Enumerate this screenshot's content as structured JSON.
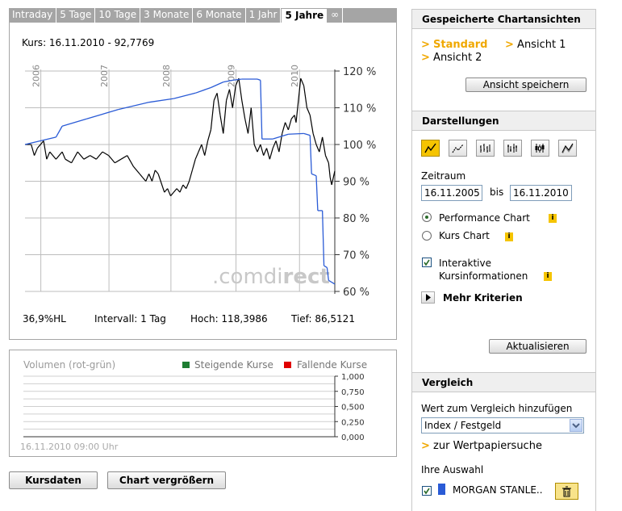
{
  "tabs": [
    "Intraday",
    "5 Tage",
    "10 Tage",
    "3 Monate",
    "6 Monate",
    "1 Jahr",
    "5 Jahre",
    "∞"
  ],
  "active_tab": "5 Jahre",
  "chart": {
    "price_title": "Kurs: 16.11.2010 - 92,7769",
    "year_labels": [
      "2006",
      "2007",
      "2008",
      "2009",
      "2010"
    ],
    "y_labels": [
      "120 %",
      "110 %",
      "100 %",
      "90 %",
      "80 %",
      "70 %",
      "60 %"
    ],
    "watermark_a": ".comdi",
    "watermark_b": "rect",
    "stat_hl": "36,9%HL",
    "stat_interval": "Intervall: 1 Tag",
    "stat_high": "Hoch: 118,3986",
    "stat_low": "Tief: 86,5121",
    "colors": {
      "stock": "#000000",
      "compare": "#2a5bd6",
      "grid": "#bdbdbd"
    }
  },
  "chart_data": {
    "type": "line",
    "x_range": [
      "16.11.2005",
      "16.11.2010"
    ],
    "ylim": [
      60,
      120
    ],
    "series": [
      {
        "name": "",
        "points": [
          [
            0,
            100
          ],
          [
            0.02,
            100
          ],
          [
            0.03,
            97
          ],
          [
            0.04,
            99
          ],
          [
            0.05,
            100
          ],
          [
            0.06,
            101
          ],
          [
            0.07,
            96
          ],
          [
            0.08,
            98
          ],
          [
            0.1,
            96
          ],
          [
            0.12,
            98
          ],
          [
            0.13,
            96
          ],
          [
            0.15,
            95
          ],
          [
            0.17,
            98
          ],
          [
            0.19,
            96
          ],
          [
            0.21,
            97
          ],
          [
            0.23,
            96
          ],
          [
            0.25,
            98
          ],
          [
            0.27,
            97
          ],
          [
            0.29,
            95
          ],
          [
            0.31,
            96
          ],
          [
            0.33,
            97
          ],
          [
            0.35,
            94
          ],
          [
            0.37,
            92
          ],
          [
            0.38,
            91
          ],
          [
            0.39,
            90
          ],
          [
            0.4,
            92
          ],
          [
            0.41,
            90
          ],
          [
            0.42,
            93
          ],
          [
            0.43,
            92
          ],
          [
            0.45,
            87
          ],
          [
            0.46,
            88
          ],
          [
            0.47,
            86
          ],
          [
            0.48,
            87
          ],
          [
            0.49,
            88
          ],
          [
            0.5,
            87
          ],
          [
            0.51,
            89
          ],
          [
            0.52,
            88
          ],
          [
            0.53,
            90
          ],
          [
            0.54,
            93
          ],
          [
            0.55,
            96
          ],
          [
            0.56,
            98
          ],
          [
            0.57,
            100
          ],
          [
            0.58,
            97
          ],
          [
            0.59,
            101
          ],
          [
            0.6,
            104
          ],
          [
            0.61,
            112
          ],
          [
            0.62,
            114
          ],
          [
            0.63,
            108
          ],
          [
            0.64,
            103
          ],
          [
            0.65,
            112
          ],
          [
            0.66,
            115
          ],
          [
            0.67,
            110
          ],
          [
            0.68,
            116
          ],
          [
            0.69,
            118
          ],
          [
            0.7,
            112
          ],
          [
            0.71,
            107
          ],
          [
            0.72,
            103
          ],
          [
            0.73,
            110
          ],
          [
            0.74,
            100
          ],
          [
            0.75,
            98
          ],
          [
            0.76,
            100
          ],
          [
            0.77,
            97
          ],
          [
            0.78,
            99
          ],
          [
            0.79,
            96
          ],
          [
            0.8,
            99
          ],
          [
            0.81,
            101
          ],
          [
            0.82,
            98
          ],
          [
            0.83,
            103
          ],
          [
            0.84,
            106
          ],
          [
            0.85,
            104
          ],
          [
            0.86,
            107
          ],
          [
            0.87,
            108
          ],
          [
            0.875,
            106
          ],
          [
            0.88,
            110
          ],
          [
            0.89,
            118
          ],
          [
            0.9,
            116
          ],
          [
            0.91,
            110
          ],
          [
            0.92,
            108
          ],
          [
            0.93,
            103
          ],
          [
            0.94,
            100
          ],
          [
            0.95,
            98
          ],
          [
            0.96,
            102
          ],
          [
            0.97,
            97
          ],
          [
            0.98,
            95
          ],
          [
            0.985,
            91
          ],
          [
            0.99,
            89
          ],
          [
            1.0,
            92.8
          ]
        ]
      },
      {
        "name": "MORGAN STANLE..",
        "points": [
          [
            0,
            100
          ],
          [
            0.1,
            102
          ],
          [
            0.12,
            105
          ],
          [
            0.2,
            107
          ],
          [
            0.3,
            109.5
          ],
          [
            0.4,
            111.5
          ],
          [
            0.48,
            112.5
          ],
          [
            0.55,
            114
          ],
          [
            0.6,
            115.5
          ],
          [
            0.64,
            117
          ],
          [
            0.67,
            117.5
          ],
          [
            0.7,
            117.8
          ],
          [
            0.75,
            117.8
          ],
          [
            0.76,
            117.5
          ],
          [
            0.765,
            101.5
          ],
          [
            0.8,
            101.5
          ],
          [
            0.85,
            102.8
          ],
          [
            0.9,
            103
          ],
          [
            0.92,
            102.5
          ],
          [
            0.925,
            92
          ],
          [
            0.94,
            91.5
          ],
          [
            0.945,
            82
          ],
          [
            0.96,
            82
          ],
          [
            0.965,
            67
          ],
          [
            0.975,
            66.5
          ],
          [
            0.98,
            63
          ],
          [
            1.0,
            62
          ]
        ]
      }
    ]
  },
  "volume": {
    "title": "Volumen (rot-grün)",
    "legend_up": "Steigende Kurse",
    "legend_down": "Fallende Kurse",
    "legend_up_color": "#1e7d32",
    "legend_down_color": "#e00000",
    "y_labels": [
      "1,000",
      "0,750",
      "0,500",
      "0,250",
      "0,000"
    ],
    "date": "16.11.2010 09:00 Uhr"
  },
  "buttons": {
    "kursdaten": "Kursdaten",
    "vergroessern": "Chart vergrößern"
  },
  "saved": {
    "title": "Gespeicherte Chartansichten",
    "standard": "Standard",
    "ansicht1": "Ansicht 1",
    "ansicht2": "Ansicht 2",
    "save_btn": "Ansicht speichern"
  },
  "darstellungen": {
    "title": "Darstellungen",
    "zeitraum": "Zeitraum",
    "from": "16.11.2005",
    "bis": "bis",
    "to": "16.11.2010",
    "performance": "Performance Chart",
    "kurs": "Kurs Chart",
    "interaktiv_1": "Interaktive",
    "interaktiv_2": "Kursinformationen",
    "mehr": "Mehr Kriterien",
    "update_btn": "Aktualisieren",
    "info": "i"
  },
  "vergleich": {
    "title": "Vergleich",
    "add_label": "Wert zum Vergleich hinzufügen",
    "select_value": "Index / Festgeld",
    "search_link": "zur Wertpapiersuche",
    "selection_label": "Ihre Auswahl",
    "item": "MORGAN STANLE..",
    "item_color": "#2a5bd6"
  }
}
